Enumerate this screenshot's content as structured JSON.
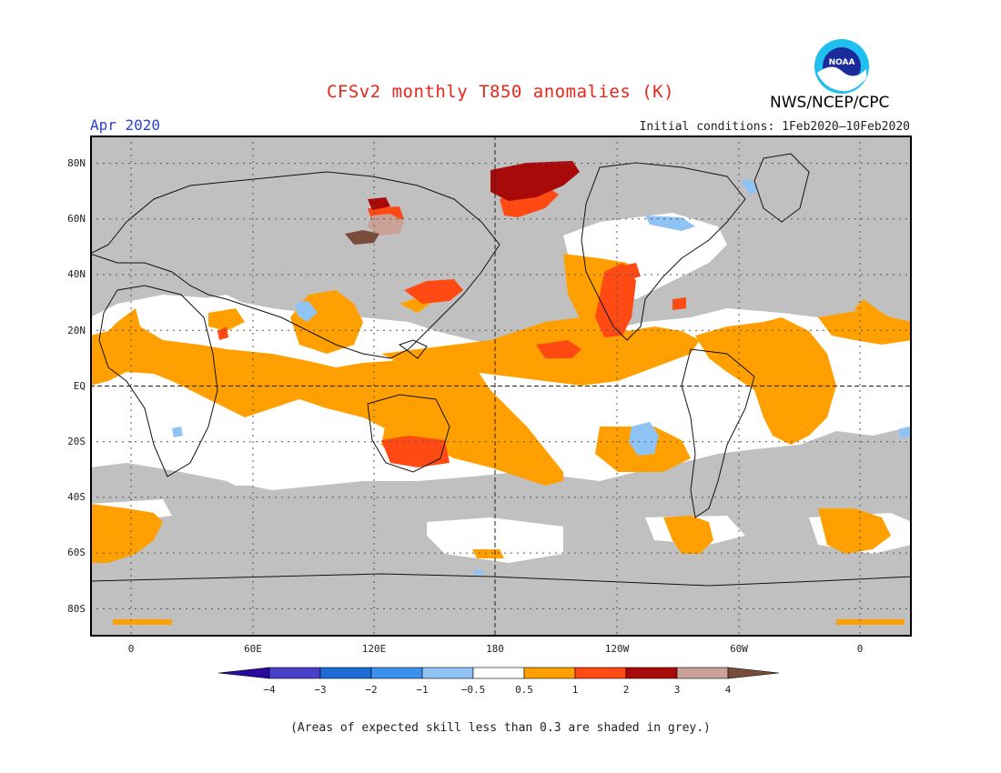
{
  "title": "CFSv2 monthly T850 anomalies (K)",
  "period": "Apr 2020",
  "initial_conditions": "Initial conditions: 1Feb2020–10Feb2020",
  "organization": "NWS/NCEP/CPC",
  "logo_text": "NOAA",
  "lat_labels": [
    "80N",
    "60N",
    "40N",
    "20N",
    "EQ",
    "20S",
    "40S",
    "60S",
    "80S"
  ],
  "lon_labels": [
    "0",
    "60E",
    "120E",
    "180",
    "120W",
    "60W",
    "0"
  ],
  "legend": {
    "levels": [
      "−4",
      "−3",
      "−2",
      "−1",
      "−0.5",
      "0.5",
      "1",
      "2",
      "3",
      "4"
    ],
    "colors": [
      "#2a0a9e",
      "#4a3fc8",
      "#1f6bd6",
      "#3d91ee",
      "#8fc3f5",
      "#ffffff",
      "#ffa000",
      "#ff4a14",
      "#a80a0a",
      "#c9a196",
      "#7a4c3b"
    ]
  },
  "colors": {
    "skill_grey": "#c0c0c0",
    "near_zero": "#ffffff",
    "warm_0_5_1": "#ffa000",
    "warm_1_2": "#ff4a14",
    "warm_2_3": "#a80a0a",
    "warm_3_4": "#c9a196",
    "cool_0_5_1": "#8fc3f5"
  },
  "footnote": "(Areas of expected skill less than 0.3 are shaded in grey.)"
}
